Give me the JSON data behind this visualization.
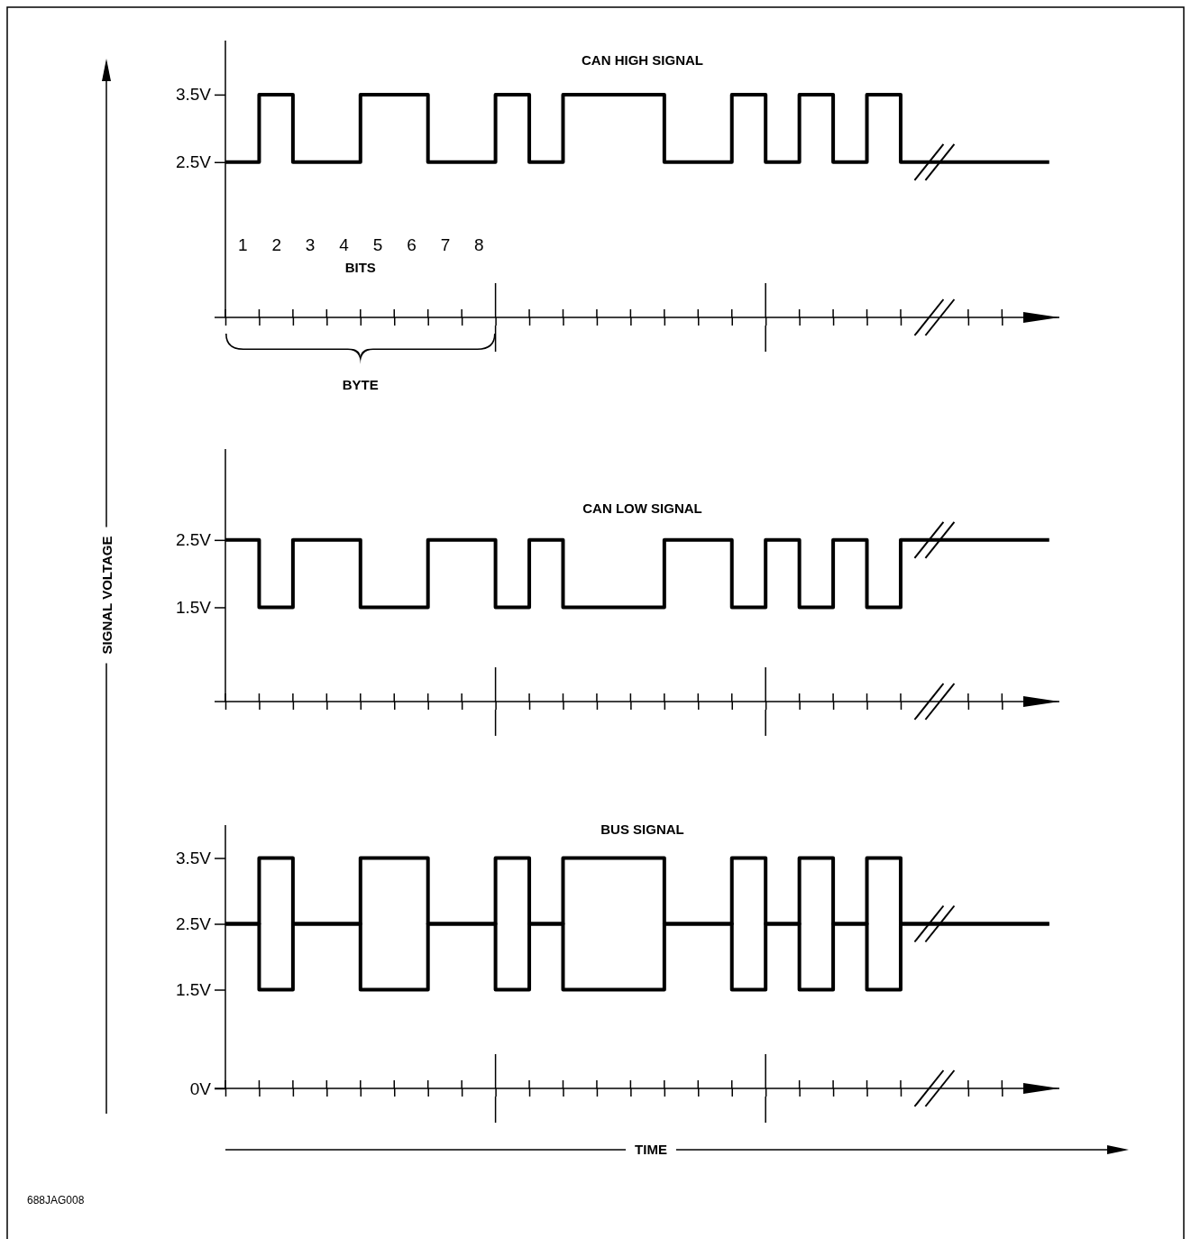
{
  "chart_data": [
    {
      "type": "step",
      "title": "CAN HIGH SIGNAL",
      "xlim": [
        0.5,
        25.2
      ],
      "ylim": [
        0.2,
        4.3
      ],
      "xticks": [
        {
          "value": 0.5,
          "label": null
        },
        {
          "value": 1.5,
          "label": null
        },
        {
          "value": 2.5,
          "label": null
        },
        {
          "value": 3.5,
          "label": null
        },
        {
          "value": 4.5,
          "label": null
        },
        {
          "value": 5.5,
          "label": null
        },
        {
          "value": 6.5,
          "label": null
        },
        {
          "value": 7.5,
          "label": null
        },
        {
          "value": 8.5,
          "label": null
        },
        {
          "value": 9.5,
          "label": null
        },
        {
          "value": 10.5,
          "label": null
        },
        {
          "value": 11.5,
          "label": null
        },
        {
          "value": 12.5,
          "label": null
        },
        {
          "value": 13.5,
          "label": null
        },
        {
          "value": 14.5,
          "label": null
        },
        {
          "value": 15.5,
          "label": null
        },
        {
          "value": 16.5,
          "label": null
        },
        {
          "value": 17.5,
          "label": null
        },
        {
          "value": 18.5,
          "label": null
        },
        {
          "value": 19.5,
          "label": null
        },
        {
          "value": 20.5,
          "label": null
        },
        {
          "value": 22.5,
          "label": null
        },
        {
          "value": 23.5,
          "label": null
        },
        1,
        2,
        3,
        4,
        5,
        6,
        7,
        8
      ],
      "yticks": [
        {
          "value": 2.5,
          "label": "2.5V"
        },
        {
          "value": 3.5,
          "label": "3.5V"
        }
      ],
      "annotations": [
        "BITS",
        "BYTE"
      ],
      "series": [
        {
          "color": "#000000",
          "x": [
            0.5,
            1.5,
            2.5,
            4.5,
            6.5,
            8.5,
            9.5,
            10.5,
            13.5,
            15.5,
            16.5,
            17.5,
            18.5,
            19.5,
            20.5,
            24.9
          ],
          "values": [
            2.5,
            3.5,
            2.5,
            3.5,
            2.5,
            3.5,
            2.5,
            3.5,
            2.5,
            3.5,
            2.5,
            3.5,
            2.5,
            3.5,
            2.5,
            2.5
          ]
        }
      ]
    },
    {
      "type": "step",
      "title": "CAN LOW SIGNAL",
      "ylabel": "SIGNAL VOLTAGE",
      "xlim": [
        0.5,
        25.2
      ],
      "ylim": [
        0.1,
        3.85
      ],
      "tick_labels": "y",
      "xticks": [
        {
          "value": 0.5,
          "label": null
        },
        {
          "value": 1.5,
          "label": null
        },
        {
          "value": 2.5,
          "label": null
        },
        {
          "value": 3.5,
          "label": null
        },
        {
          "value": 4.5,
          "label": null
        },
        {
          "value": 5.5,
          "label": null
        },
        {
          "value": 6.5,
          "label": null
        },
        {
          "value": 7.5,
          "label": null
        },
        {
          "value": 8.5,
          "label": null
        },
        {
          "value": 9.5,
          "label": null
        },
        {
          "value": 10.5,
          "label": null
        },
        {
          "value": 11.5,
          "label": null
        },
        {
          "value": 12.5,
          "label": null
        },
        {
          "value": 13.5,
          "label": null
        },
        {
          "value": 14.5,
          "label": null
        },
        {
          "value": 15.5,
          "label": null
        },
        {
          "value": 16.5,
          "label": null
        },
        {
          "value": 17.5,
          "label": null
        },
        {
          "value": 18.5,
          "label": null
        },
        {
          "value": 19.5,
          "label": null
        },
        {
          "value": 20.5,
          "label": null
        },
        {
          "value": 22.5,
          "label": null
        },
        {
          "value": 23.5,
          "label": null
        }
      ],
      "yticks": [
        {
          "value": 1.5,
          "label": "1.5V"
        },
        {
          "value": 2.5,
          "label": "2.5V"
        }
      ],
      "series": [
        {
          "color": "#000000",
          "x": [
            0.5,
            1.5,
            2.5,
            4.5,
            6.5,
            8.5,
            9.5,
            10.5,
            13.5,
            15.5,
            16.5,
            17.5,
            18.5,
            19.5,
            20.5,
            24.9
          ],
          "values": [
            2.5,
            1.5,
            2.5,
            1.5,
            2.5,
            1.5,
            2.5,
            1.5,
            2.5,
            1.5,
            2.5,
            1.5,
            2.5,
            1.5,
            2.5,
            2.5
          ]
        }
      ]
    },
    {
      "type": "step",
      "title": "BUS SIGNAL",
      "xlabel": "TIME",
      "xlim": [
        0.5,
        25.2
      ],
      "ylim": [
        0,
        4
      ],
      "tick_labels": "y",
      "xticks": [
        {
          "value": 0.5,
          "label": null
        },
        {
          "value": 1.5,
          "label": null
        },
        {
          "value": 2.5,
          "label": null
        },
        {
          "value": 3.5,
          "label": null
        },
        {
          "value": 4.5,
          "label": null
        },
        {
          "value": 5.5,
          "label": null
        },
        {
          "value": 6.5,
          "label": null
        },
        {
          "value": 7.5,
          "label": null
        },
        {
          "value": 8.5,
          "label": null
        },
        {
          "value": 9.5,
          "label": null
        },
        {
          "value": 10.5,
          "label": null
        },
        {
          "value": 11.5,
          "label": null
        },
        {
          "value": 12.5,
          "label": null
        },
        {
          "value": 13.5,
          "label": null
        },
        {
          "value": 14.5,
          "label": null
        },
        {
          "value": 15.5,
          "label": null
        },
        {
          "value": 16.5,
          "label": null
        },
        {
          "value": 17.5,
          "label": null
        },
        {
          "value": 18.5,
          "label": null
        },
        {
          "value": 19.5,
          "label": null
        },
        {
          "value": 20.5,
          "label": null
        },
        {
          "value": 22.5,
          "label": null
        },
        {
          "value": 23.5,
          "label": null
        }
      ],
      "yticks": [
        {
          "value": 0,
          "label": "0V"
        },
        {
          "value": 1.5,
          "label": "1.5V"
        },
        {
          "value": 2.5,
          "label": "2.5V"
        },
        {
          "value": 3.5,
          "label": "3.5V"
        }
      ],
      "annotations": [
        "688JAG008"
      ],
      "series": [
        {
          "color": "#000000",
          "x": [
            0.5,
            1.5,
            2.5,
            4.5,
            6.5,
            8.5,
            9.5,
            10.5,
            13.5,
            15.5,
            16.5,
            17.5,
            18.5,
            19.5,
            20.5,
            24.9
          ],
          "values": [
            2.5,
            3.5,
            2.5,
            3.5,
            2.5,
            3.5,
            2.5,
            3.5,
            2.5,
            3.5,
            2.5,
            3.5,
            2.5,
            3.5,
            2.5,
            2.5
          ]
        },
        {
          "color": "#000000",
          "x": [
            0.5,
            1.5,
            2.5,
            4.5,
            6.5,
            8.5,
            9.5,
            10.5,
            13.5,
            15.5,
            16.5,
            17.5,
            18.5,
            19.5,
            20.5,
            24.9
          ],
          "values": [
            2.5,
            1.5,
            2.5,
            1.5,
            2.5,
            1.5,
            2.5,
            1.5,
            2.5,
            1.5,
            2.5,
            1.5,
            2.5,
            1.5,
            2.5,
            2.5
          ]
        }
      ]
    }
  ]
}
